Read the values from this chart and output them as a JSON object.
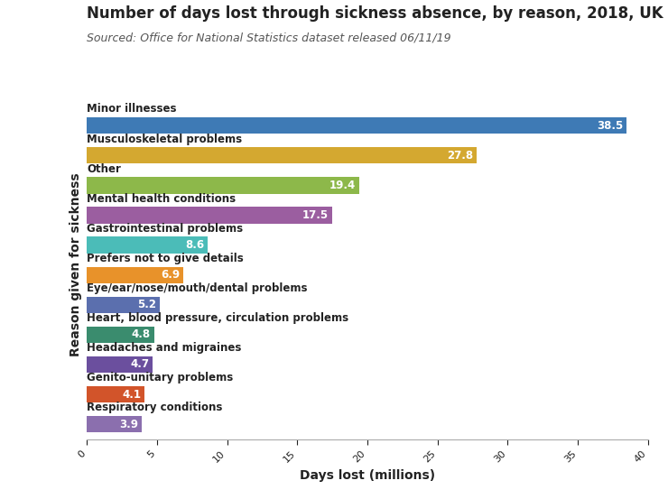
{
  "title": "Number of days lost through sickness absence, by reason, 2018, UK",
  "subtitle": "Sourced: Office for National Statistics dataset released 06/11/19",
  "xlabel": "Days lost (millions)",
  "ylabel": "Reason given for sickness",
  "categories": [
    "Minor illnesses",
    "Musculoskeletal problems",
    "Other",
    "Mental health conditions",
    "Gastrointestinal problems",
    "Prefers not to give details",
    "Eye/ear/nose/mouth/dental problems",
    "Heart, blood pressure, circulation problems",
    "Headaches and migraines",
    "Genito-unitary problems",
    "Respiratory conditions"
  ],
  "values": [
    38.5,
    27.8,
    19.4,
    17.5,
    8.6,
    6.9,
    5.2,
    4.8,
    4.7,
    4.1,
    3.9
  ],
  "colors": [
    "#3E7AB5",
    "#D4A830",
    "#8DB84A",
    "#9B5EA0",
    "#4BBCB8",
    "#E8922A",
    "#5B6FAE",
    "#3A8C6E",
    "#6B4F9E",
    "#D2542A",
    "#8B6FAE"
  ],
  "xlim": [
    0,
    40
  ],
  "xticks": [
    0,
    5,
    10,
    15,
    20,
    25,
    30,
    35,
    40
  ],
  "bar_height": 0.55,
  "title_fontsize": 12,
  "subtitle_fontsize": 9,
  "label_fontsize": 8.5,
  "value_fontsize": 8.5,
  "axis_label_fontsize": 10,
  "tick_fontsize": 8,
  "background_color": "#FFFFFF",
  "text_color": "#222222",
  "subtitle_color": "#555555"
}
